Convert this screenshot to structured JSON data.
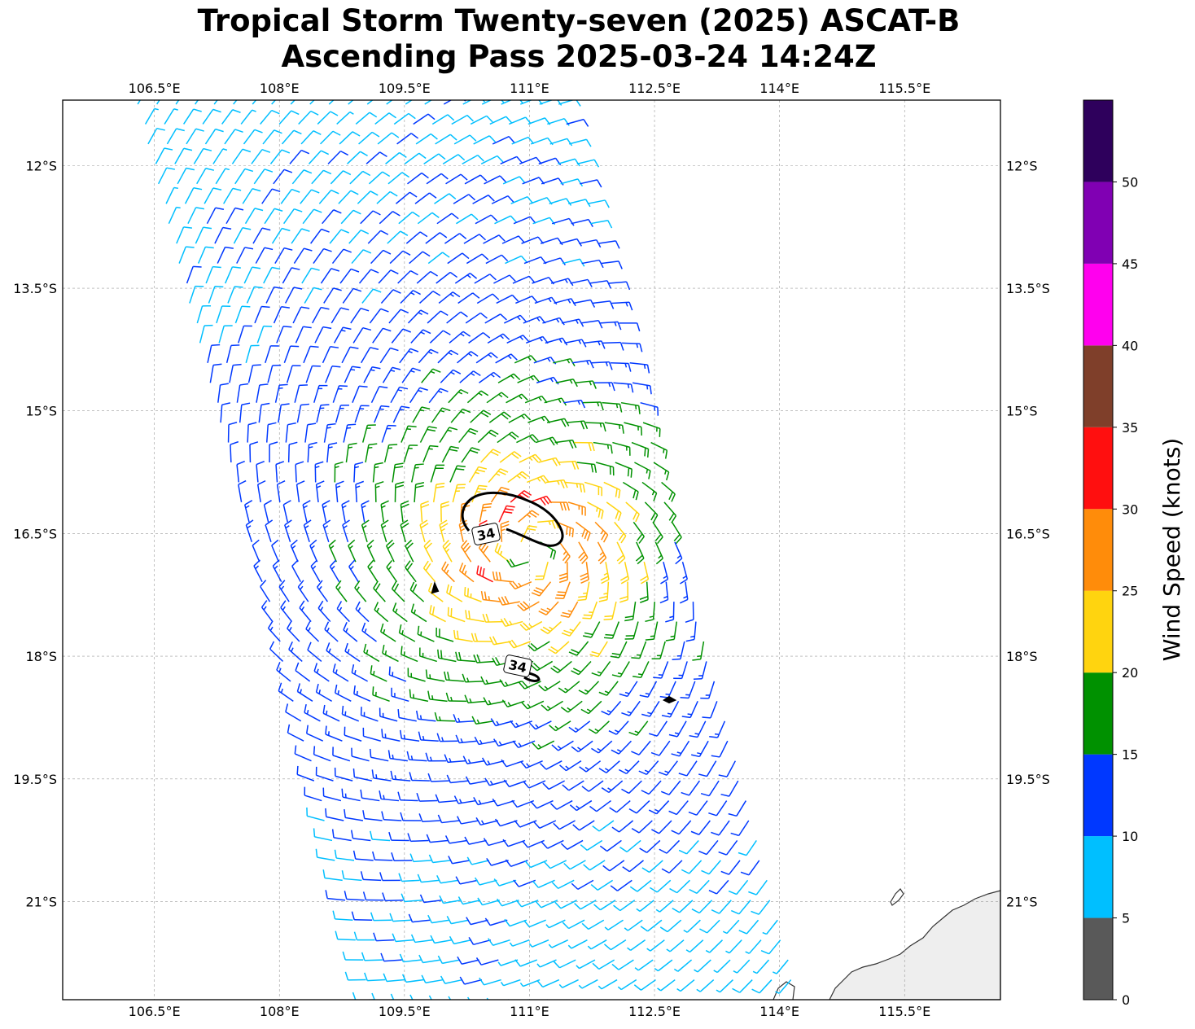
{
  "title": {
    "line1": "Tropical Storm Twenty-seven (2025) ASCAT-B",
    "line2": "Ascending Pass 2025-03-24 14:24Z"
  },
  "map": {
    "lon_range": [
      105.4,
      116.65
    ],
    "lat_range": [
      -22.2,
      -11.2
    ],
    "lon_ticks": [
      106.5,
      108,
      109.5,
      111,
      112.5,
      114,
      115.5
    ],
    "lon_tick_labels": [
      "106.5°E",
      "108°E",
      "109.5°E",
      "111°E",
      "112.5°E",
      "114°E",
      "115.5°E"
    ],
    "lat_ticks": [
      -12,
      -13.5,
      -15,
      -16.5,
      -18,
      -19.5,
      -21
    ],
    "lat_tick_labels": [
      "12°S",
      "13.5°S",
      "15°S",
      "16.5°S",
      "18°S",
      "19.5°S",
      "21°S"
    ],
    "gridlines": true,
    "storm_center": {
      "lon": 111.0,
      "lat": -16.7
    },
    "contour_level": "34",
    "contour_labels": [
      "34",
      "34"
    ],
    "land": "Western Australia coastline (bottom-right)"
  },
  "colorbar": {
    "label": "Wind Speed (knots)",
    "levels": [
      0,
      5,
      10,
      15,
      20,
      25,
      30,
      35,
      40,
      45,
      50,
      55
    ],
    "tick_labels": [
      "0",
      "5",
      "10",
      "15",
      "20",
      "25",
      "30",
      "35",
      "40",
      "45",
      "50"
    ],
    "colors": [
      "#595959",
      "#00bfff",
      "#0038ff",
      "#009100",
      "#ffd40f",
      "#ff8c0a",
      "#ff0f0f",
      "#7f3f2a",
      "#ff00ee",
      "#8000b3",
      "#2e005c"
    ]
  }
}
